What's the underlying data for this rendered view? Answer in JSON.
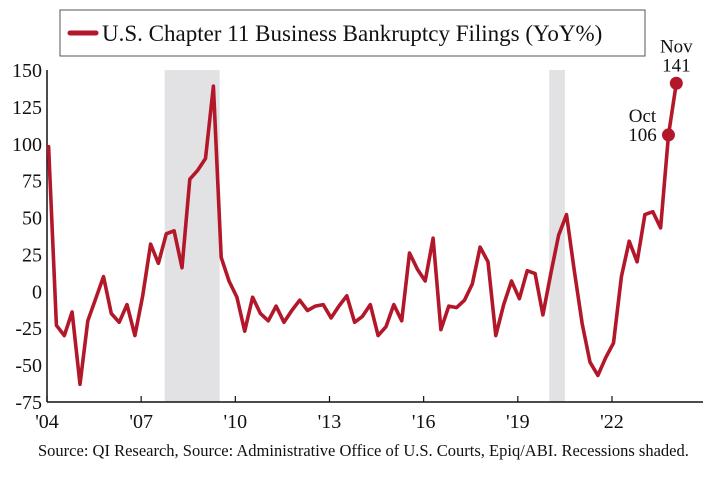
{
  "chart_data": {
    "type": "line",
    "title": "U.S. Chapter 11 Business Bankruptcy Filings (YoY%)",
    "xlabel": "",
    "ylabel": "",
    "ylim": [
      -75,
      150
    ],
    "xlim": [
      2004.0,
      2024.9
    ],
    "y_ticks": [
      150,
      125,
      100,
      75,
      50,
      25,
      0,
      -25,
      -50,
      -75
    ],
    "x_ticks": [
      {
        "value": 2004,
        "label": "'04"
      },
      {
        "value": 2007,
        "label": "'07"
      },
      {
        "value": 2010,
        "label": "'10"
      },
      {
        "value": 2013,
        "label": "'13"
      },
      {
        "value": 2016,
        "label": "'16"
      },
      {
        "value": 2019,
        "label": "'19"
      },
      {
        "value": 2022,
        "label": "'22"
      }
    ],
    "grid": false,
    "legend": {
      "position": "top",
      "entry": "U.S. Chapter 11 Business Bankruptcy Filings (YoY%)"
    },
    "recessions": [
      [
        2007.75,
        2009.5
      ],
      [
        2020.0,
        2020.5
      ]
    ],
    "series": [
      {
        "name": "U.S. Chapter 11 Business Bankruptcy Filings (YoY%)",
        "color": "#B3182A",
        "points": [
          [
            2004.05,
            98
          ],
          [
            2004.3,
            -23
          ],
          [
            2004.55,
            -30
          ],
          [
            2004.8,
            -14
          ],
          [
            2005.05,
            -63
          ],
          [
            2005.3,
            -20
          ],
          [
            2005.55,
            -5
          ],
          [
            2005.8,
            10
          ],
          [
            2006.05,
            -15
          ],
          [
            2006.3,
            -21
          ],
          [
            2006.55,
            -9
          ],
          [
            2006.8,
            -30
          ],
          [
            2007.05,
            -3
          ],
          [
            2007.3,
            32
          ],
          [
            2007.55,
            19
          ],
          [
            2007.8,
            39
          ],
          [
            2008.05,
            41
          ],
          [
            2008.3,
            16
          ],
          [
            2008.55,
            76
          ],
          [
            2008.8,
            82
          ],
          [
            2009.05,
            90
          ],
          [
            2009.3,
            139
          ],
          [
            2009.55,
            23
          ],
          [
            2009.8,
            7
          ],
          [
            2010.05,
            -4
          ],
          [
            2010.3,
            -27
          ],
          [
            2010.55,
            -4
          ],
          [
            2010.8,
            -15
          ],
          [
            2011.05,
            -20
          ],
          [
            2011.3,
            -10
          ],
          [
            2011.55,
            -21
          ],
          [
            2011.8,
            -13
          ],
          [
            2012.05,
            -6
          ],
          [
            2012.3,
            -13
          ],
          [
            2012.55,
            -10
          ],
          [
            2012.8,
            -9
          ],
          [
            2013.05,
            -18
          ],
          [
            2013.3,
            -10
          ],
          [
            2013.55,
            -3
          ],
          [
            2013.8,
            -21
          ],
          [
            2014.05,
            -17
          ],
          [
            2014.3,
            -9
          ],
          [
            2014.55,
            -30
          ],
          [
            2014.8,
            -24
          ],
          [
            2015.05,
            -9
          ],
          [
            2015.3,
            -20
          ],
          [
            2015.55,
            26
          ],
          [
            2015.8,
            15
          ],
          [
            2016.05,
            7
          ],
          [
            2016.3,
            36
          ],
          [
            2016.55,
            -26
          ],
          [
            2016.8,
            -10
          ],
          [
            2017.05,
            -11
          ],
          [
            2017.3,
            -6
          ],
          [
            2017.55,
            5
          ],
          [
            2017.8,
            30
          ],
          [
            2018.05,
            20
          ],
          [
            2018.3,
            -30
          ],
          [
            2018.55,
            -9
          ],
          [
            2018.8,
            7
          ],
          [
            2019.05,
            -5
          ],
          [
            2019.3,
            14
          ],
          [
            2019.55,
            12
          ],
          [
            2019.8,
            -16
          ],
          [
            2020.05,
            12
          ],
          [
            2020.3,
            38
          ],
          [
            2020.55,
            52
          ],
          [
            2020.8,
            14
          ],
          [
            2021.05,
            -22
          ],
          [
            2021.3,
            -48
          ],
          [
            2021.55,
            -57
          ],
          [
            2021.8,
            -45
          ],
          [
            2022.05,
            -35
          ],
          [
            2022.3,
            10
          ],
          [
            2022.55,
            34
          ],
          [
            2022.8,
            20
          ],
          [
            2023.05,
            52
          ],
          [
            2023.3,
            54
          ],
          [
            2023.55,
            43
          ],
          [
            2023.8,
            106
          ],
          [
            2024.05,
            141
          ]
        ]
      }
    ],
    "annotations": [
      {
        "month": "Oct",
        "value": "106",
        "at": [
          2023.8,
          106
        ]
      },
      {
        "month": "Nov",
        "value": "141",
        "at": [
          2024.05,
          141
        ]
      }
    ]
  },
  "source_text": "Source: QI Research, Source: Administrative Office of U.S. Courts, Epiq/ABI. Recessions shaded."
}
